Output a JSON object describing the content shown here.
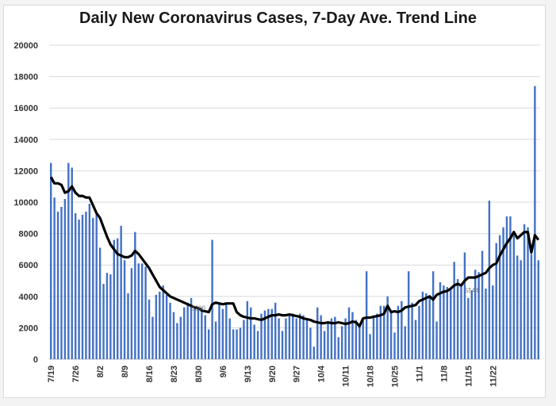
{
  "chart_data": {
    "type": "bar",
    "title": "Daily New Coronavirus Cases, 7-Day Ave. Trend Line",
    "xlabel": "",
    "ylabel": "",
    "ylim": [
      0,
      20000
    ],
    "yticks": [
      0,
      2000,
      4000,
      6000,
      8000,
      10000,
      12000,
      14000,
      16000,
      18000,
      20000
    ],
    "grid": true,
    "legend": "none",
    "bar_color": "#4472c4",
    "line_color": "#000000",
    "x_tick_labels": [
      "7/19",
      "7/26",
      "8/2",
      "8/9",
      "8/16",
      "8/23",
      "8/30",
      "9/6",
      "9/13",
      "9/20",
      "9/27",
      "10/4",
      "10/11",
      "10/18",
      "10/25",
      "11/1",
      "11/8",
      "11/15",
      "11/22"
    ],
    "x_tick_every_days": 7,
    "annotations": [
      {
        "text": "3260",
        "day_index": 42
      },
      {
        "text": "5544",
        "day_index": 120
      }
    ],
    "series": [
      {
        "name": "Daily New Cases",
        "type": "bar",
        "values": [
          12500,
          10300,
          9400,
          9700,
          10200,
          12500,
          12200,
          9300,
          8900,
          9200,
          9400,
          9900,
          9000,
          9300,
          7100,
          4800,
          5500,
          5400,
          7600,
          7700,
          8500,
          6300,
          4200,
          5800,
          8100,
          6100,
          6100,
          5900,
          3800,
          2700,
          4100,
          4300,
          4700,
          4100,
          3600,
          3000,
          2300,
          2700,
          3300,
          3600,
          3900,
          3300,
          3260,
          3300,
          2800,
          1900,
          7600,
          2400,
          3500,
          3200,
          3600,
          2600,
          1900,
          1900,
          2000,
          2500,
          3700,
          3300,
          2200,
          1800,
          2900,
          3100,
          3200,
          3200,
          3600,
          2600,
          1800,
          2600,
          2800,
          2900,
          2600,
          2900,
          2800,
          2500,
          2000,
          800,
          3300,
          2800,
          1800,
          2400,
          2600,
          2700,
          1400,
          2100,
          2600,
          3300,
          3000,
          2500,
          2100,
          2600,
          5600,
          1600,
          2800,
          2900,
          3400,
          3400,
          4000,
          3000,
          1700,
          3400,
          3700,
          2100,
          5600,
          3600,
          2500,
          3400,
          4300,
          4200,
          4000,
          5600,
          2400,
          4900,
          4700,
          4600,
          4500,
          6200,
          5100,
          4700,
          6800,
          3900,
          4400,
          5700,
          5544,
          6900,
          4500,
          10100,
          4700,
          7400,
          7900,
          8400,
          9100,
          9100,
          8000,
          6600,
          6300,
          8600,
          8400,
          6700,
          17400,
          6300
        ]
      },
      {
        "name": "7-Day Average",
        "type": "line",
        "values": [
          11600,
          11200,
          11200,
          11100,
          10600,
          10700,
          11000,
          10600,
          10400,
          10400,
          10300,
          10300,
          9800,
          9300,
          9000,
          8400,
          7800,
          7300,
          7000,
          6700,
          6600,
          6500,
          6500,
          6600,
          6900,
          6700,
          6400,
          6100,
          5800,
          5400,
          5000,
          4600,
          4400,
          4200,
          4000,
          3900,
          3800,
          3700,
          3600,
          3500,
          3400,
          3300,
          3260,
          3100,
          3050,
          3000,
          3500,
          3600,
          3550,
          3500,
          3550,
          3550,
          3550,
          3000,
          2800,
          2700,
          2650,
          2600,
          2600,
          2550,
          2500,
          2600,
          2700,
          2800,
          2800,
          2850,
          2800,
          2800,
          2850,
          2800,
          2750,
          2700,
          2600,
          2550,
          2500,
          2400,
          2350,
          2300,
          2300,
          2350,
          2300,
          2300,
          2350,
          2300,
          2250,
          2300,
          2400,
          2350,
          2100,
          2600,
          2650,
          2650,
          2700,
          2750,
          2800,
          2900,
          3400,
          3000,
          3050,
          3000,
          3100,
          3300,
          3350,
          3400,
          3450,
          3700,
          3800,
          3900,
          4000,
          3800,
          4100,
          4200,
          4300,
          4350,
          4500,
          4700,
          4800,
          4700,
          5000,
          5200,
          5200,
          5200,
          5300,
          5400,
          5500,
          5800,
          6000,
          6100,
          6600,
          7000,
          7400,
          7700,
          8100,
          7700,
          7900,
          8100,
          8100,
          6800,
          7900,
          7600
        ]
      }
    ]
  }
}
